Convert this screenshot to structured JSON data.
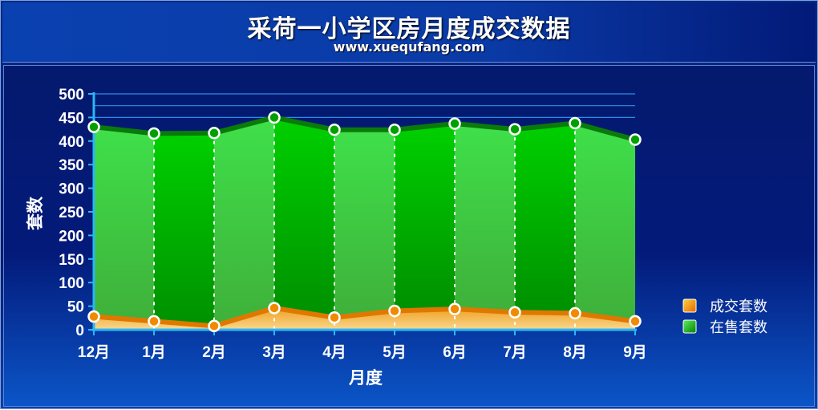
{
  "header": {
    "title": "采荷一小学区房月度成交数据",
    "subtitle": "www.xuequfang.com"
  },
  "chart_data": {
    "type": "area",
    "title": "采荷一小学区房月度成交数据",
    "subtitle": "www.xuequfang.com",
    "xlabel": "月度",
    "ylabel": "套数",
    "categories": [
      "12月",
      "1月",
      "2月",
      "3月",
      "4月",
      "5月",
      "6月",
      "7月",
      "8月",
      "9月"
    ],
    "ylim": [
      0,
      500
    ],
    "yticks": [
      0,
      50,
      100,
      150,
      200,
      250,
      300,
      350,
      400,
      450,
      500
    ],
    "grid": true,
    "legend_position": "right",
    "series": [
      {
        "name": "成交套数",
        "values": [
          28,
          18,
          8,
          46,
          26,
          40,
          44,
          37,
          35,
          18
        ],
        "color": "#f08a00"
      },
      {
        "name": "在售套数",
        "values": [
          430,
          416,
          417,
          450,
          424,
          424,
          437,
          425,
          438,
          403
        ],
        "color": "#00b000"
      }
    ]
  }
}
